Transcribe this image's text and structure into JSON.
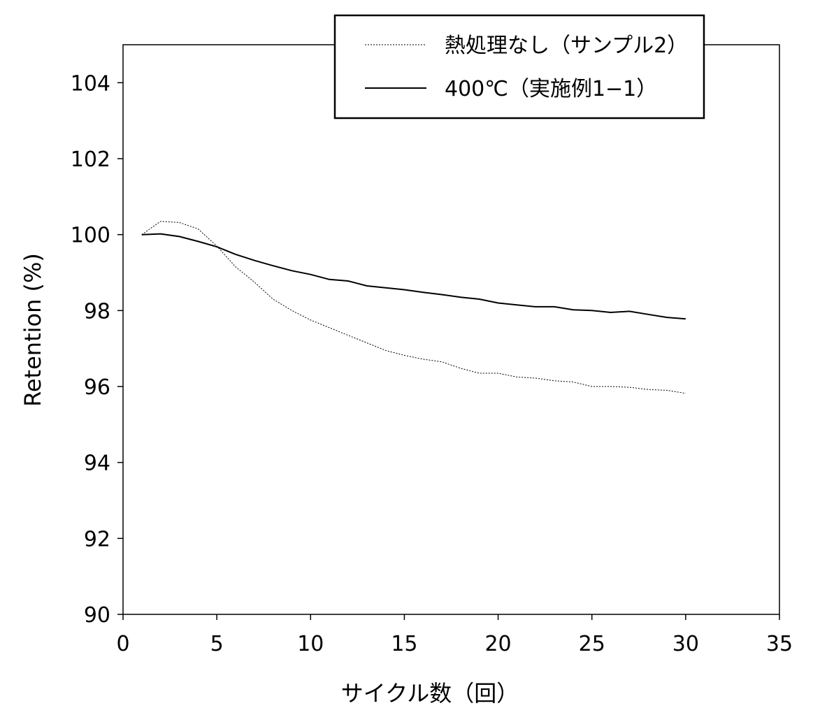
{
  "chart_data": {
    "type": "line",
    "title": "",
    "xlabel": "サイクル数（回）",
    "ylabel": "Retention (%)",
    "xlim": [
      0,
      35
    ],
    "ylim": [
      90,
      105
    ],
    "xticks": [
      0,
      5,
      10,
      15,
      20,
      25,
      30,
      35
    ],
    "yticks": [
      90,
      92,
      94,
      96,
      98,
      100,
      102,
      104
    ],
    "grid": false,
    "legend_position": "top-right",
    "series": [
      {
        "name": "熱処理なし（サンプル2）",
        "style": "dotted",
        "x": [
          1,
          2,
          3,
          4,
          5,
          6,
          7,
          8,
          9,
          10,
          11,
          12,
          13,
          14,
          15,
          16,
          17,
          18,
          19,
          20,
          21,
          22,
          23,
          24,
          25,
          26,
          27,
          28,
          29,
          30
        ],
        "y": [
          100.0,
          100.35,
          100.32,
          100.15,
          99.7,
          99.15,
          98.75,
          98.3,
          98.0,
          97.75,
          97.55,
          97.35,
          97.15,
          96.95,
          96.82,
          96.72,
          96.65,
          96.48,
          96.35,
          96.35,
          96.25,
          96.22,
          96.15,
          96.12,
          96.0,
          96.0,
          95.98,
          95.92,
          95.9,
          95.82
        ]
      },
      {
        "name": "400℃（実施例1−1）",
        "style": "solid",
        "x": [
          1,
          2,
          3,
          4,
          5,
          6,
          7,
          8,
          9,
          10,
          11,
          12,
          13,
          14,
          15,
          16,
          17,
          18,
          19,
          20,
          21,
          22,
          23,
          24,
          25,
          26,
          27,
          28,
          29,
          30
        ],
        "y": [
          100.0,
          100.02,
          99.95,
          99.82,
          99.68,
          99.48,
          99.32,
          99.18,
          99.05,
          98.95,
          98.82,
          98.78,
          98.65,
          98.6,
          98.55,
          98.48,
          98.42,
          98.35,
          98.3,
          98.2,
          98.15,
          98.1,
          98.1,
          98.02,
          98.0,
          97.95,
          97.98,
          97.9,
          97.82,
          97.78
        ]
      }
    ]
  }
}
